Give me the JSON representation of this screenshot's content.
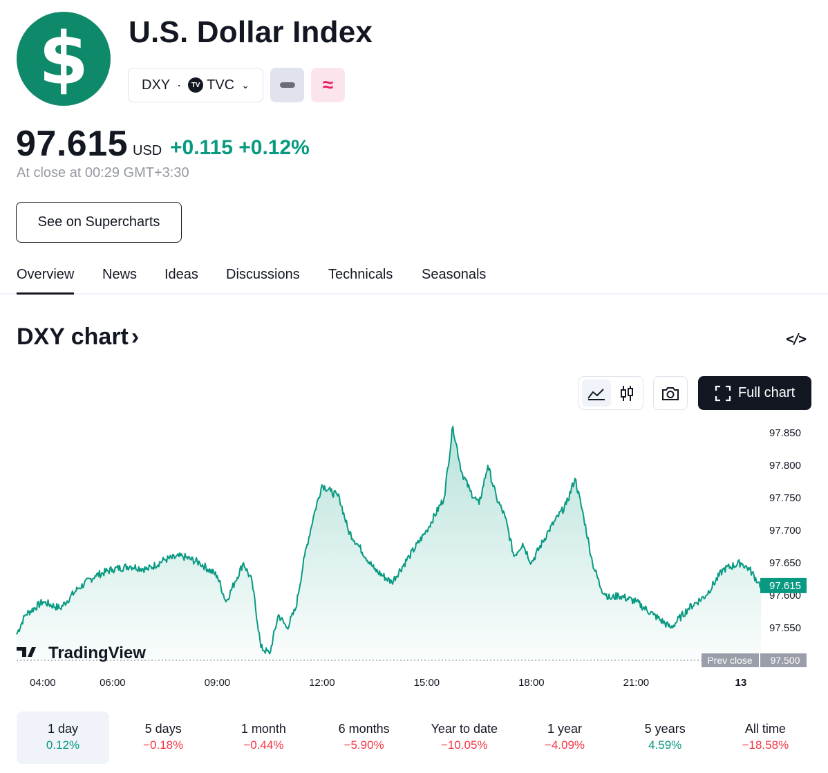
{
  "header": {
    "logo_symbol": "$",
    "title": "U.S. Dollar Index",
    "symbol": "DXY",
    "exchange_badge": "TV",
    "exchange": "TVC",
    "price": "97.615",
    "currency": "USD",
    "change": "+0.115 +0.12%",
    "close_info": "At close at 00:29 GMT+3:30",
    "supercharts_button": "See on Supercharts"
  },
  "tabs": [
    "Overview",
    "News",
    "Ideas",
    "Discussions",
    "Technicals",
    "Seasonals"
  ],
  "chart_section": {
    "title": "DXY chart",
    "full_chart_label": "Full chart"
  },
  "colors": {
    "line": "#089981",
    "positive": "#089981",
    "negative": "#f23645",
    "logo": "#0e8a6b"
  },
  "chart_data": {
    "type": "area",
    "y_ticks": [
      "97.850",
      "97.800",
      "97.750",
      "97.700",
      "97.650",
      "97.600",
      "97.550"
    ],
    "x_ticks": [
      "04:00",
      "06:00",
      "09:00",
      "12:00",
      "15:00",
      "18:00",
      "21:00",
      "13"
    ],
    "ylim": [
      97.5,
      97.86
    ],
    "x_hours": [
      3.25,
      3.5,
      4.0,
      4.5,
      5.0,
      5.5,
      6.0,
      6.5,
      7.0,
      7.5,
      8.0,
      8.5,
      9.0,
      9.25,
      9.5,
      9.75,
      10.0,
      10.25,
      10.5,
      10.75,
      11.0,
      11.25,
      11.5,
      11.75,
      12.0,
      12.25,
      12.5,
      12.75,
      13.0,
      13.5,
      14.0,
      14.5,
      15.0,
      15.5,
      15.75,
      16.0,
      16.25,
      16.5,
      16.75,
      17.0,
      17.25,
      17.5,
      17.75,
      18.0,
      18.5,
      19.0,
      19.25,
      19.5,
      19.75,
      20.0,
      20.25,
      20.5,
      21.0,
      21.5,
      22.0,
      22.5,
      23.0,
      23.5,
      24.0,
      24.25,
      24.5,
      24.58
    ],
    "values": [
      97.54,
      97.57,
      97.59,
      97.58,
      97.61,
      97.63,
      97.64,
      97.645,
      97.64,
      97.655,
      97.66,
      97.65,
      97.63,
      97.59,
      97.62,
      97.65,
      97.62,
      97.52,
      97.51,
      97.57,
      97.55,
      97.58,
      97.66,
      97.72,
      97.77,
      97.76,
      97.75,
      97.7,
      97.68,
      97.64,
      97.62,
      97.66,
      97.7,
      97.75,
      97.86,
      97.79,
      97.76,
      97.74,
      97.8,
      97.75,
      97.72,
      97.66,
      97.68,
      97.65,
      97.7,
      97.74,
      97.78,
      97.72,
      97.65,
      97.61,
      97.595,
      97.6,
      97.59,
      97.57,
      97.55,
      97.58,
      97.6,
      97.64,
      97.65,
      97.64,
      97.62,
      97.615
    ],
    "last_price_label": "97.615",
    "prev_close": 97.5,
    "prev_close_caption": "Prev close",
    "prev_close_value": "97.500",
    "watermark": "TradingView"
  },
  "periods": [
    {
      "label": "1 day",
      "value": "0.12%",
      "positive": true
    },
    {
      "label": "5 days",
      "value": "−0.18%",
      "positive": false
    },
    {
      "label": "1 month",
      "value": "−0.44%",
      "positive": false
    },
    {
      "label": "6 months",
      "value": "−5.90%",
      "positive": false
    },
    {
      "label": "Year to date",
      "value": "−10.05%",
      "positive": false
    },
    {
      "label": "1 year",
      "value": "−4.09%",
      "positive": false
    },
    {
      "label": "5 years",
      "value": "4.59%",
      "positive": true
    },
    {
      "label": "All time",
      "value": "−18.58%",
      "positive": false
    }
  ]
}
